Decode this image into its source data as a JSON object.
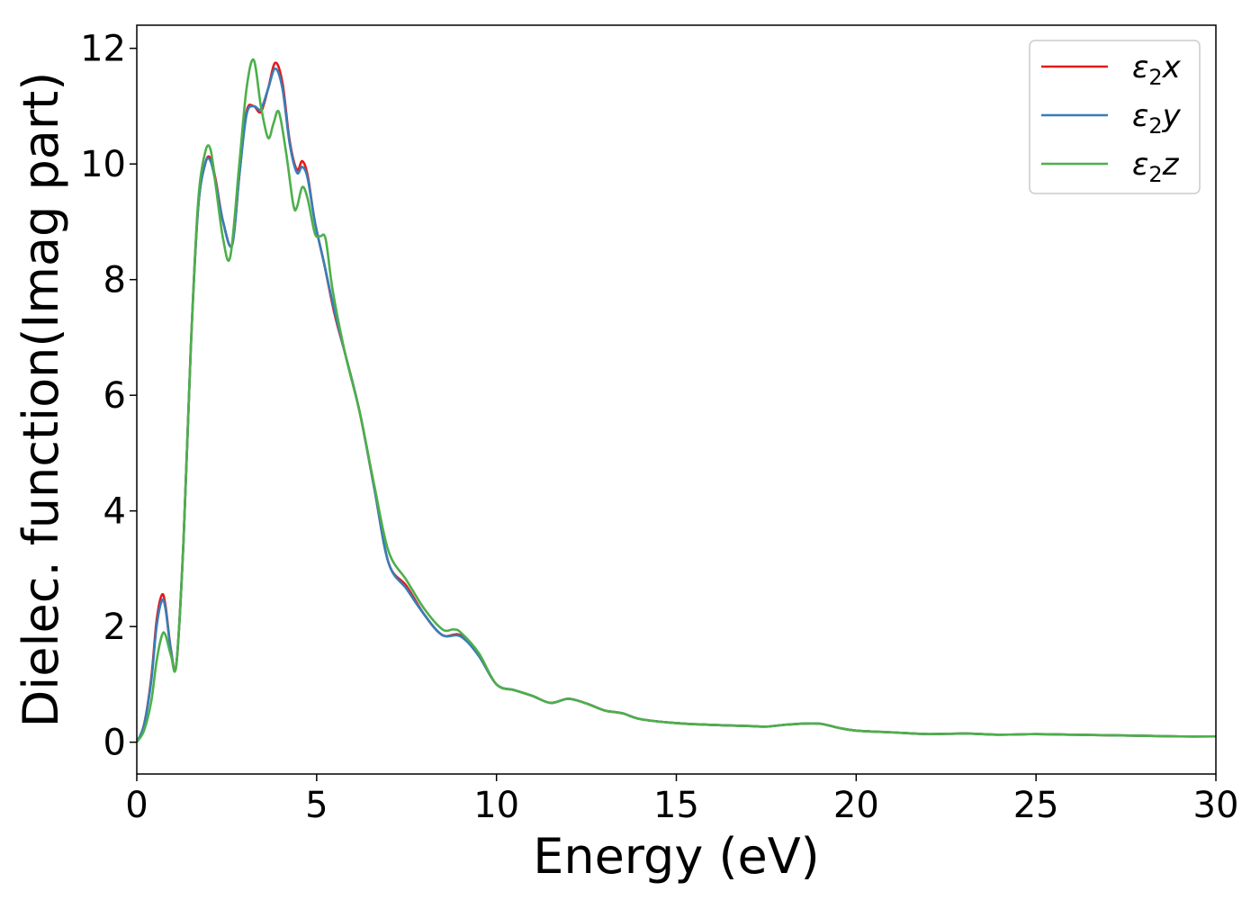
{
  "chart_data": {
    "type": "line",
    "title": "",
    "xlabel": "Energy (eV)",
    "ylabel": "Dielec. function(Imag part)",
    "xlim": [
      0,
      30
    ],
    "ylim": [
      -0.55,
      12.4
    ],
    "xticks": [
      0,
      5,
      10,
      15,
      20,
      25,
      30
    ],
    "xtick_labels": [
      "0",
      "5",
      "10",
      "15",
      "20",
      "25",
      "30"
    ],
    "yticks": [
      0,
      2,
      4,
      6,
      8,
      10,
      12
    ],
    "ytick_labels": [
      "0",
      "2",
      "4",
      "6",
      "8",
      "10",
      "12"
    ],
    "grid": false,
    "legend_position": "top-right",
    "series": [
      {
        "name": "ε2x",
        "label_base": "ε",
        "label_sub": "2",
        "label_var": "x",
        "color": "#e41a1c",
        "x": [
          0,
          0.2,
          0.4,
          0.55,
          0.7,
          0.8,
          0.95,
          1.1,
          1.3,
          1.5,
          1.7,
          1.9,
          2.05,
          2.2,
          2.4,
          2.65,
          2.85,
          3.05,
          3.25,
          3.45,
          3.65,
          3.85,
          4.05,
          4.25,
          4.45,
          4.6,
          4.75,
          4.95,
          5.2,
          5.5,
          5.8,
          6.2,
          6.6,
          7.0,
          7.5,
          8.0,
          8.5,
          9.0,
          9.5,
          10.0,
          10.5,
          11.0,
          11.5,
          12.0,
          12.5,
          13.0,
          13.5,
          14.0,
          15.0,
          16.0,
          17.0,
          17.5,
          18.0,
          18.5,
          19.0,
          19.5,
          20.0,
          21.0,
          22.0,
          23.0,
          24.0,
          25.0,
          26.0,
          27.0,
          28.0,
          29.0,
          30.0
        ],
        "values": [
          0.0,
          0.3,
          1.1,
          2.1,
          2.55,
          2.35,
          1.6,
          1.35,
          3.5,
          6.8,
          9.2,
          10.0,
          10.1,
          9.7,
          9.0,
          8.6,
          9.8,
          10.9,
          11.0,
          10.9,
          11.3,
          11.75,
          11.4,
          10.4,
          9.9,
          10.05,
          9.8,
          9.0,
          8.3,
          7.4,
          6.7,
          5.7,
          4.4,
          3.1,
          2.7,
          2.2,
          1.85,
          1.85,
          1.5,
          1.0,
          0.9,
          0.8,
          0.68,
          0.75,
          0.67,
          0.55,
          0.5,
          0.4,
          0.33,
          0.3,
          0.28,
          0.27,
          0.3,
          0.32,
          0.32,
          0.25,
          0.2,
          0.17,
          0.14,
          0.15,
          0.13,
          0.14,
          0.13,
          0.12,
          0.11,
          0.1,
          0.1
        ]
      },
      {
        "name": "ε2y",
        "label_base": "ε",
        "label_sub": "2",
        "label_var": "y",
        "color": "#377eb8",
        "x": [
          0,
          0.2,
          0.4,
          0.55,
          0.7,
          0.8,
          0.95,
          1.1,
          1.3,
          1.5,
          1.7,
          1.9,
          2.05,
          2.2,
          2.4,
          2.65,
          2.85,
          3.05,
          3.25,
          3.45,
          3.65,
          3.85,
          4.05,
          4.25,
          4.45,
          4.6,
          4.75,
          4.95,
          5.2,
          5.5,
          5.8,
          6.2,
          6.6,
          7.0,
          7.5,
          8.0,
          8.5,
          9.0,
          9.5,
          10.0,
          10.5,
          11.0,
          11.5,
          12.0,
          12.5,
          13.0,
          13.5,
          14.0,
          15.0,
          16.0,
          17.0,
          17.5,
          18.0,
          18.5,
          19.0,
          19.5,
          20.0,
          21.0,
          22.0,
          23.0,
          24.0,
          25.0,
          26.0,
          27.0,
          28.0,
          29.0,
          30.0
        ],
        "values": [
          0.0,
          0.3,
          1.05,
          2.0,
          2.45,
          2.3,
          1.58,
          1.35,
          3.5,
          6.8,
          9.2,
          10.0,
          10.05,
          9.65,
          9.0,
          8.6,
          9.8,
          10.85,
          11.0,
          10.95,
          11.3,
          11.65,
          11.3,
          10.35,
          9.85,
          9.95,
          9.75,
          9.0,
          8.3,
          7.45,
          6.7,
          5.7,
          4.4,
          3.1,
          2.65,
          2.2,
          1.85,
          1.83,
          1.5,
          1.0,
          0.9,
          0.8,
          0.68,
          0.75,
          0.67,
          0.55,
          0.5,
          0.4,
          0.33,
          0.3,
          0.28,
          0.27,
          0.3,
          0.32,
          0.32,
          0.25,
          0.2,
          0.17,
          0.14,
          0.15,
          0.13,
          0.14,
          0.13,
          0.12,
          0.11,
          0.1,
          0.1
        ]
      },
      {
        "name": "ε2z",
        "label_base": "ε",
        "label_sub": "2",
        "label_var": "z",
        "color": "#4daf4a",
        "x": [
          0,
          0.2,
          0.4,
          0.55,
          0.7,
          0.8,
          0.95,
          1.1,
          1.3,
          1.5,
          1.7,
          1.9,
          2.05,
          2.2,
          2.4,
          2.6,
          2.85,
          3.05,
          3.25,
          3.45,
          3.65,
          3.8,
          3.95,
          4.15,
          4.35,
          4.45,
          4.6,
          4.75,
          4.95,
          5.1,
          5.25,
          5.45,
          5.8,
          6.2,
          6.6,
          7.0,
          7.5,
          8.0,
          8.5,
          8.8,
          9.0,
          9.5,
          10.0,
          10.5,
          11.0,
          11.5,
          12.0,
          12.5,
          13.0,
          13.5,
          14.0,
          15.0,
          16.0,
          17.0,
          17.5,
          18.0,
          18.5,
          19.0,
          19.5,
          20.0,
          21.0,
          22.0,
          23.0,
          24.0,
          25.0,
          26.0,
          27.0,
          28.0,
          29.0,
          30.0
        ],
        "values": [
          0.0,
          0.2,
          0.7,
          1.4,
          1.85,
          1.85,
          1.5,
          1.35,
          3.5,
          6.8,
          9.3,
          10.2,
          10.25,
          9.6,
          8.7,
          8.4,
          10.0,
          11.3,
          11.8,
          11.0,
          10.45,
          10.7,
          10.9,
          10.2,
          9.3,
          9.25,
          9.6,
          9.4,
          8.8,
          8.75,
          8.7,
          7.8,
          6.7,
          5.7,
          4.45,
          3.3,
          2.8,
          2.3,
          1.95,
          1.95,
          1.9,
          1.55,
          1.0,
          0.9,
          0.8,
          0.68,
          0.75,
          0.67,
          0.55,
          0.5,
          0.4,
          0.33,
          0.3,
          0.28,
          0.27,
          0.3,
          0.32,
          0.32,
          0.25,
          0.2,
          0.17,
          0.14,
          0.15,
          0.13,
          0.14,
          0.13,
          0.12,
          0.11,
          0.1,
          0.1
        ]
      }
    ]
  }
}
